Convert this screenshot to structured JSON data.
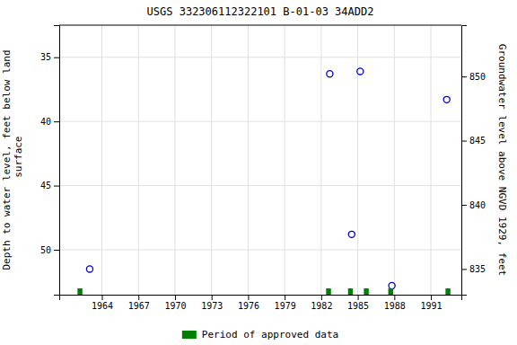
{
  "chart_data": {
    "type": "scatter",
    "title": "USGS 332306112322101 B-01-03 34ADD2",
    "ylabel": "Depth to water level, feet below land\n surface",
    "y2label": "Groundwater level above NGVD 1929, feet",
    "series": [
      {
        "type": "scatter",
        "color": "#0000cc",
        "marker": "circle",
        "x": [
          1963.0,
          1982.7,
          1985.2,
          1984.5,
          1987.8,
          1992.3
        ],
        "values": [
          51.5,
          36.3,
          36.1,
          48.8,
          52.8,
          38.3
        ]
      },
      {
        "type": "span",
        "name": "Period of approved data",
        "color": "#008000",
        "x": [
          1962.0,
          1982.4,
          1984.2,
          1985.5,
          1987.5,
          1992.2
        ],
        "widths": [
          0.4,
          0.4,
          0.4,
          0.4,
          0.4,
          0.4
        ]
      }
    ],
    "xlim": [
      1960.5,
      1993.5
    ],
    "xticks": [
      1964,
      1967,
      1970,
      1973,
      1976,
      1979,
      1982,
      1985,
      1988,
      1991
    ],
    "ylim": [
      53.5,
      32.5
    ],
    "yticks": [
      35,
      40,
      45,
      50
    ],
    "y2lim": [
      833,
      854
    ],
    "y2ticks": [
      850,
      845,
      840,
      835
    ],
    "grid": true,
    "legend": "bottom"
  }
}
